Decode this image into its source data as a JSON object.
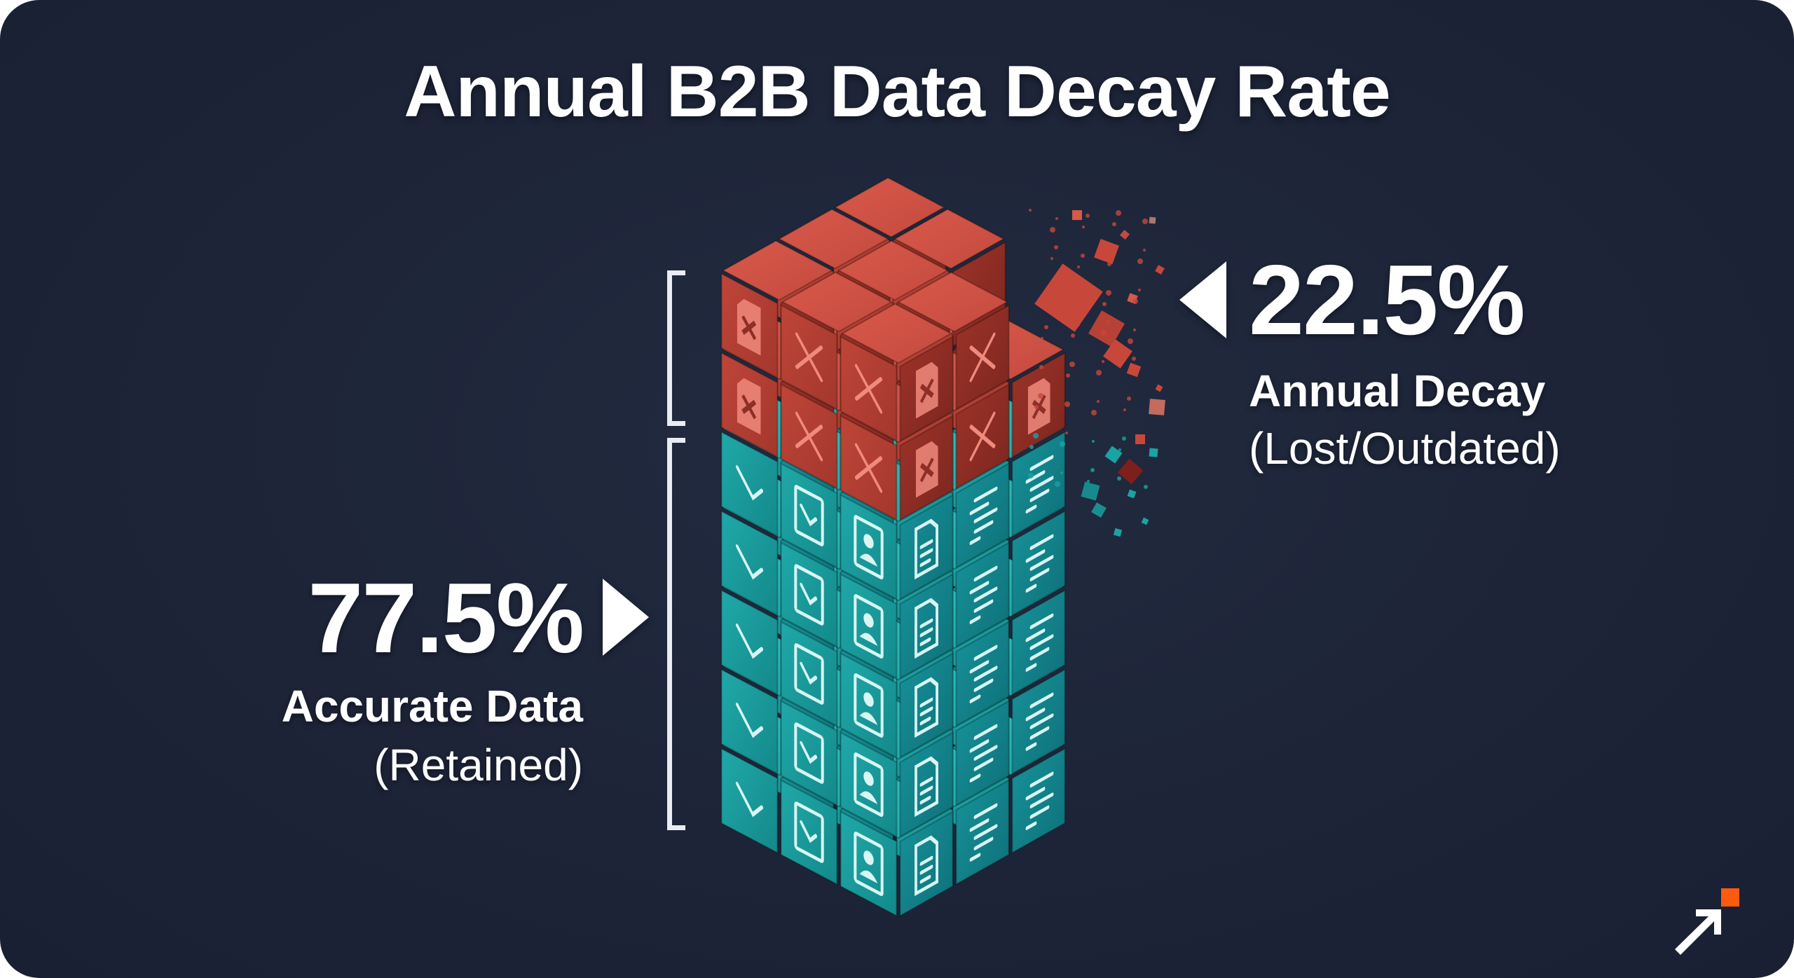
{
  "title": "Annual B2B Data Decay Rate",
  "decay": {
    "value": "22.5%",
    "label": "Annual Decay",
    "sublabel": "(Lost/Outdated)",
    "color": "#c8473b",
    "pointer_icon": "triangle-left-icon"
  },
  "retained": {
    "value": "77.5%",
    "label": "Accurate Data",
    "sublabel": "(Retained)",
    "color": "#1aa3a3",
    "pointer_icon": "triangle-right-icon"
  },
  "stack": {
    "grid": "3x3",
    "layers_total": 7,
    "layers_decayed": 2,
    "layers_retained": 5,
    "decayed_face_icons": [
      "x-mark-icon",
      "broken-document-icon"
    ],
    "retained_face_icons": [
      "user-profile-icon",
      "checkbox-icon",
      "list-icon",
      "document-icon",
      "checkmark-icon",
      "code-lines-icon"
    ]
  },
  "logo": {
    "icon": "arrow-up-right-icon",
    "accent": "#ff5a10"
  },
  "chart_data": {
    "type": "stacked-bar",
    "title": "Annual B2B Data Decay Rate",
    "categories": [
      "B2B Data"
    ],
    "series": [
      {
        "name": "Accurate Data (Retained)",
        "values": [
          77.5
        ],
        "color": "#1aa3a3"
      },
      {
        "name": "Annual Decay (Lost/Outdated)",
        "values": [
          22.5
        ],
        "color": "#c8473b"
      }
    ],
    "unit": "%",
    "ylim": [
      0,
      100
    ]
  }
}
